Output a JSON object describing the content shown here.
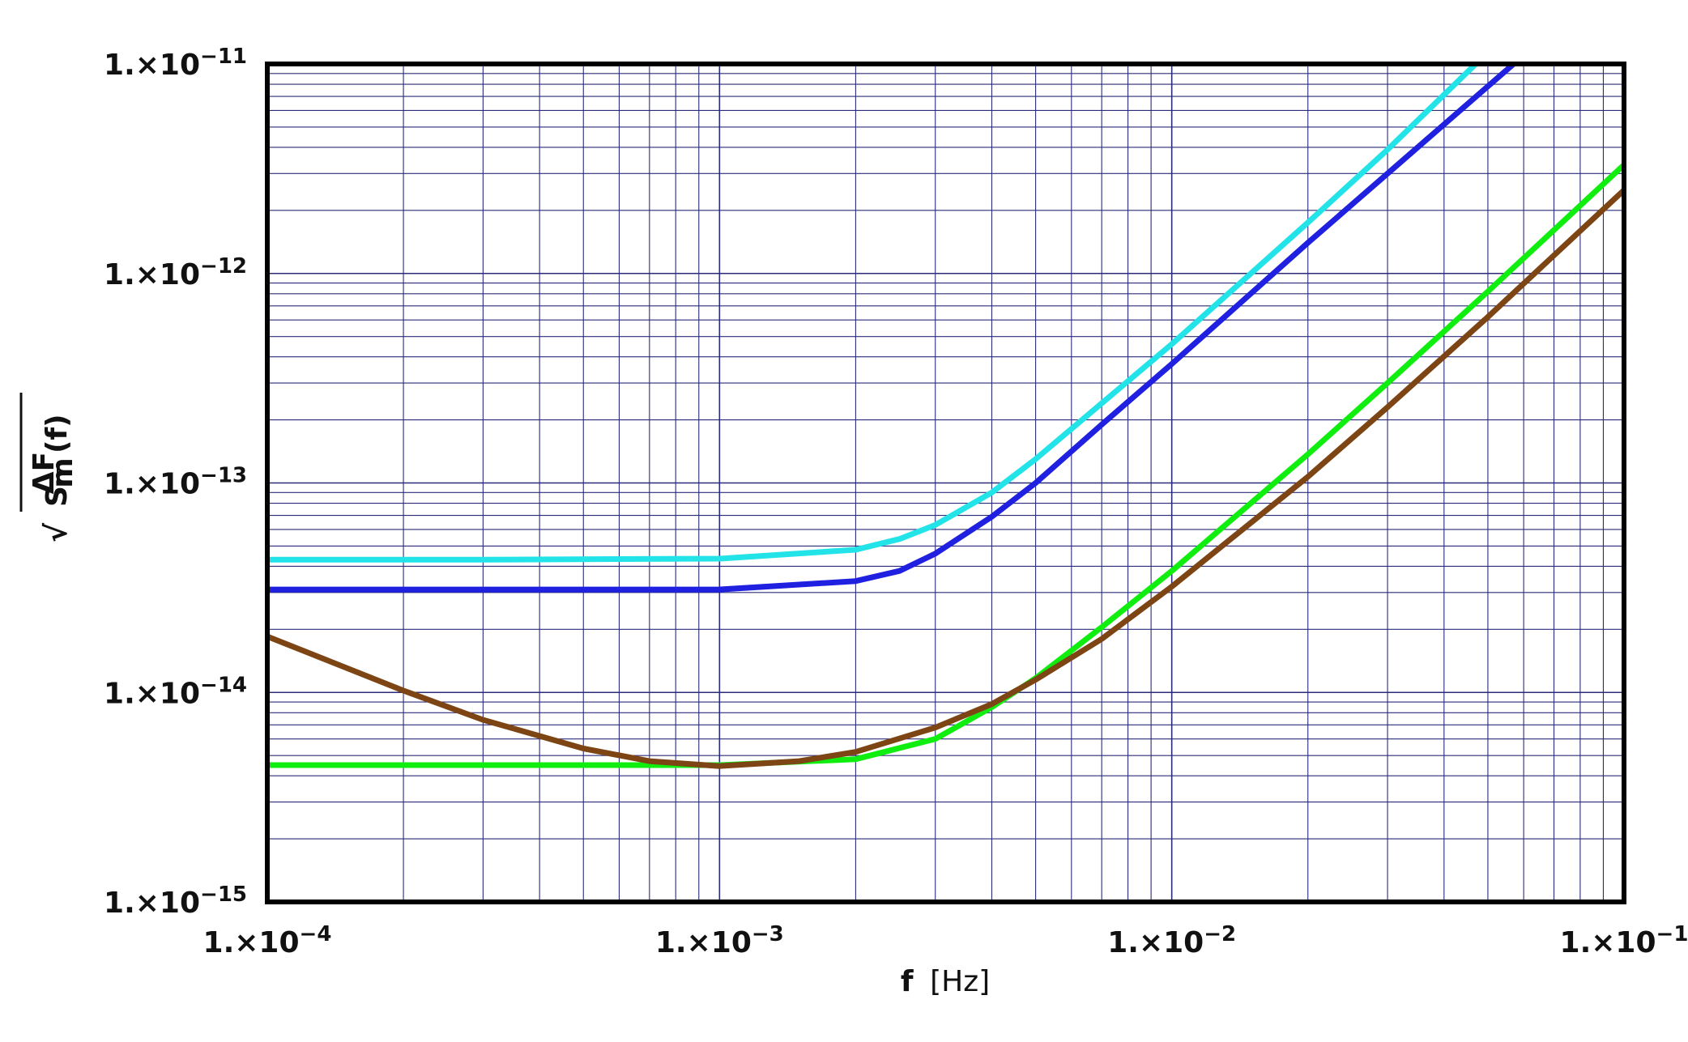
{
  "chart_data": {
    "type": "line",
    "xscale": "log",
    "yscale": "log",
    "xlim": [
      0.0001,
      0.1
    ],
    "ylim": [
      1e-15,
      1e-11
    ],
    "grid": true,
    "xlabel": {
      "main": "f",
      "unit": "[Hz]"
    },
    "ylabel": {
      "radical": "√",
      "symbol": "S",
      "numerator": "ΔF",
      "denominator": "m",
      "argument": "(f)"
    },
    "x_ticks": [
      {
        "value": 0.0001,
        "mantissa": "1.×10",
        "exponent": "−4"
      },
      {
        "value": 0.001,
        "mantissa": "1.×10",
        "exponent": "−3"
      },
      {
        "value": 0.01,
        "mantissa": "1.×10",
        "exponent": "−2"
      },
      {
        "value": 0.1,
        "mantissa": "1.×10",
        "exponent": "−1"
      }
    ],
    "y_ticks": [
      {
        "value": 1e-11,
        "mantissa": "1.×10",
        "exponent": "−11"
      },
      {
        "value": 1e-12,
        "mantissa": "1.×10",
        "exponent": "−12"
      },
      {
        "value": 1e-13,
        "mantissa": "1.×10",
        "exponent": "−13"
      },
      {
        "value": 1e-14,
        "mantissa": "1.×10",
        "exponent": "−14"
      },
      {
        "value": 1e-15,
        "mantissa": "1.×10",
        "exponent": "−15"
      }
    ],
    "colors": {
      "grid": "#2b2b7a",
      "frame": "#000000",
      "text": "#111111"
    },
    "series": [
      {
        "color": "#22e3e8",
        "x": [
          0.0001,
          0.0003,
          0.001,
          0.002,
          0.0025,
          0.003,
          0.004,
          0.005,
          0.007,
          0.01,
          0.02,
          0.03,
          0.047
        ],
        "y": [
          4.3e-14,
          4.3e-14,
          4.35e-14,
          4.8e-14,
          5.4e-14,
          6.3e-14,
          9e-14,
          1.3e-13,
          2.4e-13,
          4.6e-13,
          1.75e-12,
          3.9e-12,
          1e-11
        ]
      },
      {
        "color": "#2020e0",
        "x": [
          0.0001,
          0.0003,
          0.001,
          0.002,
          0.0025,
          0.003,
          0.004,
          0.005,
          0.007,
          0.01,
          0.02,
          0.03,
          0.057
        ],
        "y": [
          3.1e-14,
          3.1e-14,
          3.1e-14,
          3.4e-14,
          3.8e-14,
          4.6e-14,
          6.9e-14,
          1e-13,
          1.9e-13,
          3.7e-13,
          1.4e-12,
          3e-12,
          1e-11
        ]
      },
      {
        "color": "#10ee10",
        "x": [
          0.0001,
          0.0003,
          0.001,
          0.002,
          0.003,
          0.004,
          0.005,
          0.007,
          0.01,
          0.02,
          0.03,
          0.05,
          0.1
        ],
        "y": [
          4.5e-15,
          4.5e-15,
          4.5e-15,
          4.8e-15,
          6e-15,
          8.5e-15,
          1.17e-14,
          2.05e-14,
          3.8e-14,
          1.37e-13,
          3e-13,
          8.2e-13,
          3.3e-12
        ]
      },
      {
        "color": "#7d4414",
        "x": [
          0.0001,
          0.0002,
          0.0003,
          0.0005,
          0.0007,
          0.001,
          0.0015,
          0.002,
          0.003,
          0.004,
          0.005,
          0.007,
          0.01,
          0.02,
          0.03,
          0.05,
          0.1
        ],
        "y": [
          1.85e-14,
          1.02e-14,
          7.4e-15,
          5.4e-15,
          4.7e-15,
          4.45e-15,
          4.7e-15,
          5.2e-15,
          6.8e-15,
          8.8e-15,
          1.15e-14,
          1.8e-14,
          3.2e-14,
          1.07e-13,
          2.3e-13,
          6.2e-13,
          2.5e-12
        ]
      }
    ]
  }
}
